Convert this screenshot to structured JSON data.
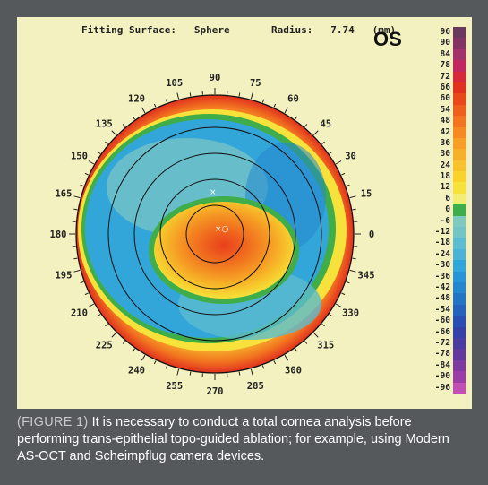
{
  "header": {
    "fitting_label": "Fitting Surface:",
    "fitting_value": "Sphere",
    "radius_label": "Radius:",
    "radius_value": "7.74",
    "radius_unit": "(mm)"
  },
  "eye_label": "OS",
  "scale": {
    "labels": [
      "96",
      "90",
      "84",
      "78",
      "72",
      "66",
      "60",
      "54",
      "48",
      "42",
      "36",
      "30",
      "24",
      "18",
      "12",
      "6",
      "0",
      "-6",
      "-12",
      "-18",
      "-24",
      "-30",
      "-36",
      "-42",
      "-48",
      "-54",
      "-60",
      "-66",
      "-72",
      "-78",
      "-84",
      "-90",
      "-96"
    ],
    "colors": [
      "#6a3a5e",
      "#843462",
      "#a1326a",
      "#c0285f",
      "#d6283a",
      "#e0301e",
      "#e8481a",
      "#ee5e1c",
      "#f27420",
      "#f58a22",
      "#f79e26",
      "#f7b02a",
      "#f7c22c",
      "#f7d32c",
      "#f6e23a",
      "#f2ee74",
      "#3fae4a",
      "#7ec9c0",
      "#74c4c6",
      "#5dbccf",
      "#4cb3d6",
      "#33a6d9",
      "#2896d6",
      "#2486cd",
      "#2474c4",
      "#2462bb",
      "#2a4eb1",
      "#3541a7",
      "#4b3c9f",
      "#633a9c",
      "#7d3a9f",
      "#9b3da6",
      "#c24fb4"
    ]
  },
  "angle_labels": [
    "90",
    "75",
    "60",
    "45",
    "30",
    "15",
    "0",
    "345",
    "330",
    "315",
    "300",
    "285",
    "270",
    "255",
    "240",
    "225",
    "210",
    "195",
    "180",
    "165",
    "150",
    "135",
    "120",
    "105"
  ],
  "caption": {
    "tag": "(FIGURE 1)",
    "text": "It is necessary to conduct a total cornea analysis before performing trans-epithelial topo-guided ablation; for example, using Modern AS-OCT and Scheimpflug camera devices."
  }
}
